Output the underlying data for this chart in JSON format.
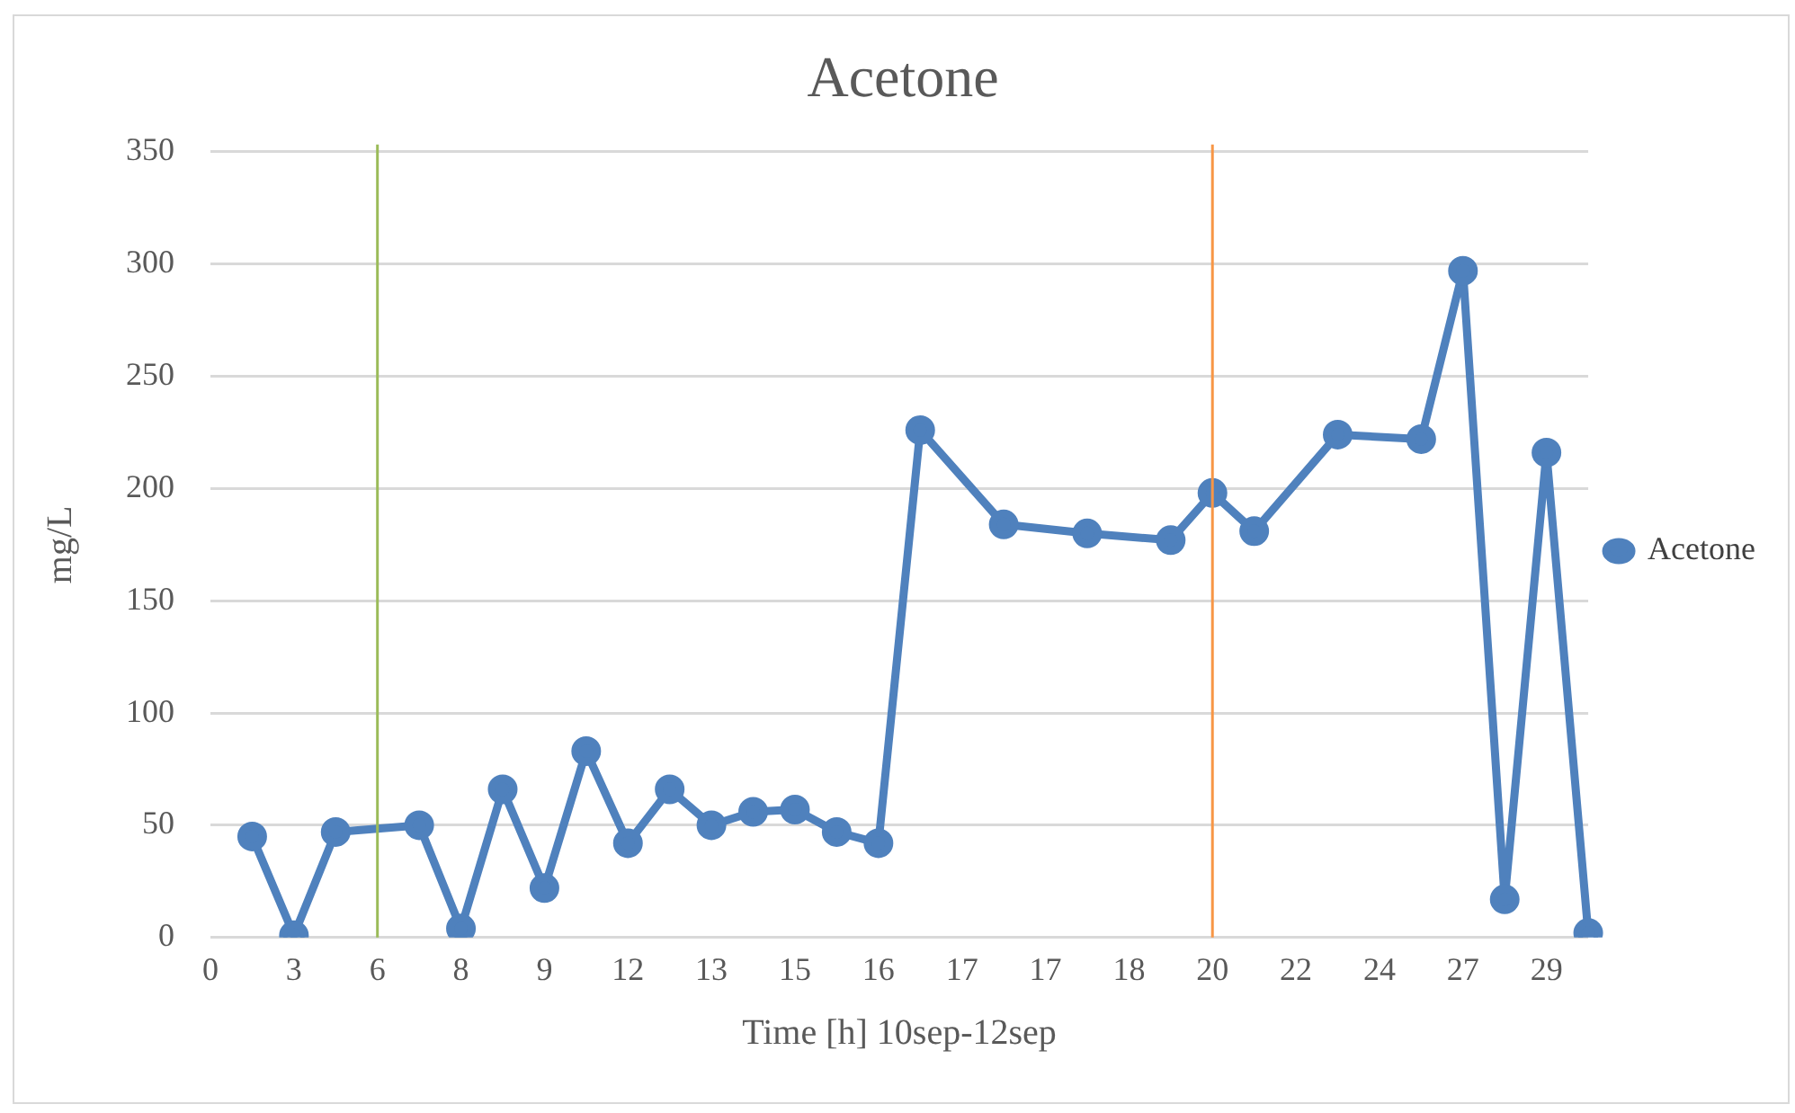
{
  "chart_data": {
    "type": "line",
    "title": "Acetone",
    "xlabel": "Time [h] 10sep-12sep",
    "ylabel": "mg/L",
    "categories": [
      "0",
      null,
      "3",
      null,
      "6",
      null,
      "8",
      null,
      "9",
      null,
      "12",
      null,
      "13",
      null,
      "15",
      null,
      "16",
      null,
      "17",
      null,
      "17",
      null,
      "18",
      null,
      "20",
      null,
      "22",
      null,
      "24",
      null,
      "27",
      null,
      "29",
      null
    ],
    "series": [
      {
        "name": "Acetone",
        "color": "#4f81bd",
        "values": [
          null,
          45,
          1,
          47,
          null,
          50,
          4,
          66,
          22,
          83,
          42,
          66,
          50,
          56,
          57,
          47,
          42,
          226,
          null,
          184,
          null,
          180,
          null,
          177,
          198,
          181,
          null,
          224,
          null,
          222,
          297,
          17,
          216,
          2
        ]
      }
    ],
    "ylim": [
      0,
      350
    ],
    "yticks": [
      0,
      50,
      100,
      150,
      200,
      250,
      300,
      350
    ],
    "grid": "y",
    "legend": "right",
    "marker": "circle",
    "line_style": "solid",
    "ref_lines": [
      {
        "axis": "x",
        "value": "6",
        "color": "#9bbb59"
      },
      {
        "axis": "x",
        "value": "20",
        "color": "#f79646"
      }
    ]
  }
}
